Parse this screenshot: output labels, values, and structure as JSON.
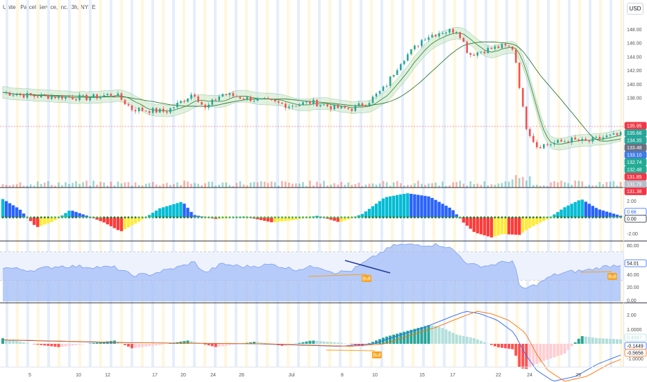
{
  "symbol": {
    "title": "United Parcel Service, Inc., 3h, NYSE"
  },
  "currency_button": "USD",
  "colors": {
    "up": "#26a69a",
    "down": "#ef5350",
    "price_line": "#f23645",
    "rsi_fill": "#a8c1f7",
    "rsi_line": "#7b9ef0",
    "trend_line": "#1f3b9b",
    "orange_line": "#f7a21b",
    "strip_yellow": "#fff6de",
    "strip_blue": "#e6eefc"
  },
  "price_axis": {
    "ticks": [
      "148.00",
      "146.00",
      "144.00",
      "142.00",
      "140.00",
      "138.00"
    ],
    "badges": [
      {
        "text": "135.95",
        "color": "#f23645"
      },
      {
        "text": "135.66",
        "color": "#26a69a"
      },
      {
        "text": "134.35",
        "color": "#26a69a"
      },
      {
        "text": "133.48",
        "color": "#6b6f80"
      },
      {
        "text": "133.10",
        "color": "#3f7be0"
      },
      {
        "text": "132.74",
        "color": "#22ab94"
      },
      {
        "text": "132.48",
        "color": "#22ab94"
      },
      {
        "text": "131.85",
        "color": "#f23645"
      },
      {
        "text": "131.79",
        "color": "#b6bdc9"
      },
      {
        "text": "131.38",
        "color": "#f23645"
      }
    ]
  },
  "momentum_axis": {
    "ticks": [
      "2.00",
      "-2.00"
    ],
    "badges": [
      {
        "text": "0.66",
        "color": "#2962ff",
        "text_color": "#2962ff",
        "fill": "#ffffff"
      },
      {
        "text": "0.00",
        "color": "#131722",
        "text_color": "#131722",
        "fill": "#ffffff"
      }
    ]
  },
  "rsi_axis": {
    "ticks": [
      "80.00",
      "40.00",
      "20.00",
      "0.00"
    ],
    "badges": [
      {
        "text": "54.01",
        "color": "#2962ff",
        "text_color": "#131722",
        "fill": "#ffffff"
      }
    ],
    "labels": [
      {
        "text": "Bull"
      },
      {
        "text": "Bull"
      }
    ]
  },
  "macd_axis": {
    "ticks": [
      "2.00",
      "1.0000",
      "-1.0000"
    ],
    "badges": [
      {
        "text": "0.4097",
        "color": "#b2dfdb",
        "text_color": "#b2dfdb",
        "fill": "#ffffff"
      },
      {
        "text": "-0.1449",
        "color": "#2962ff",
        "text_color": "#131722",
        "fill": "#ffffff"
      },
      {
        "text": "-0.5656",
        "color": "#ff6d00",
        "text_color": "#131722",
        "fill": "#ffffff"
      }
    ],
    "labels": [
      {
        "text": "Bull"
      }
    ]
  },
  "time_axis": {
    "labels": [
      "5",
      "10",
      "12",
      "17",
      "20",
      "24",
      "26",
      "Jul",
      "8",
      "10",
      "15",
      "17",
      "22",
      "24",
      "29"
    ]
  }
}
